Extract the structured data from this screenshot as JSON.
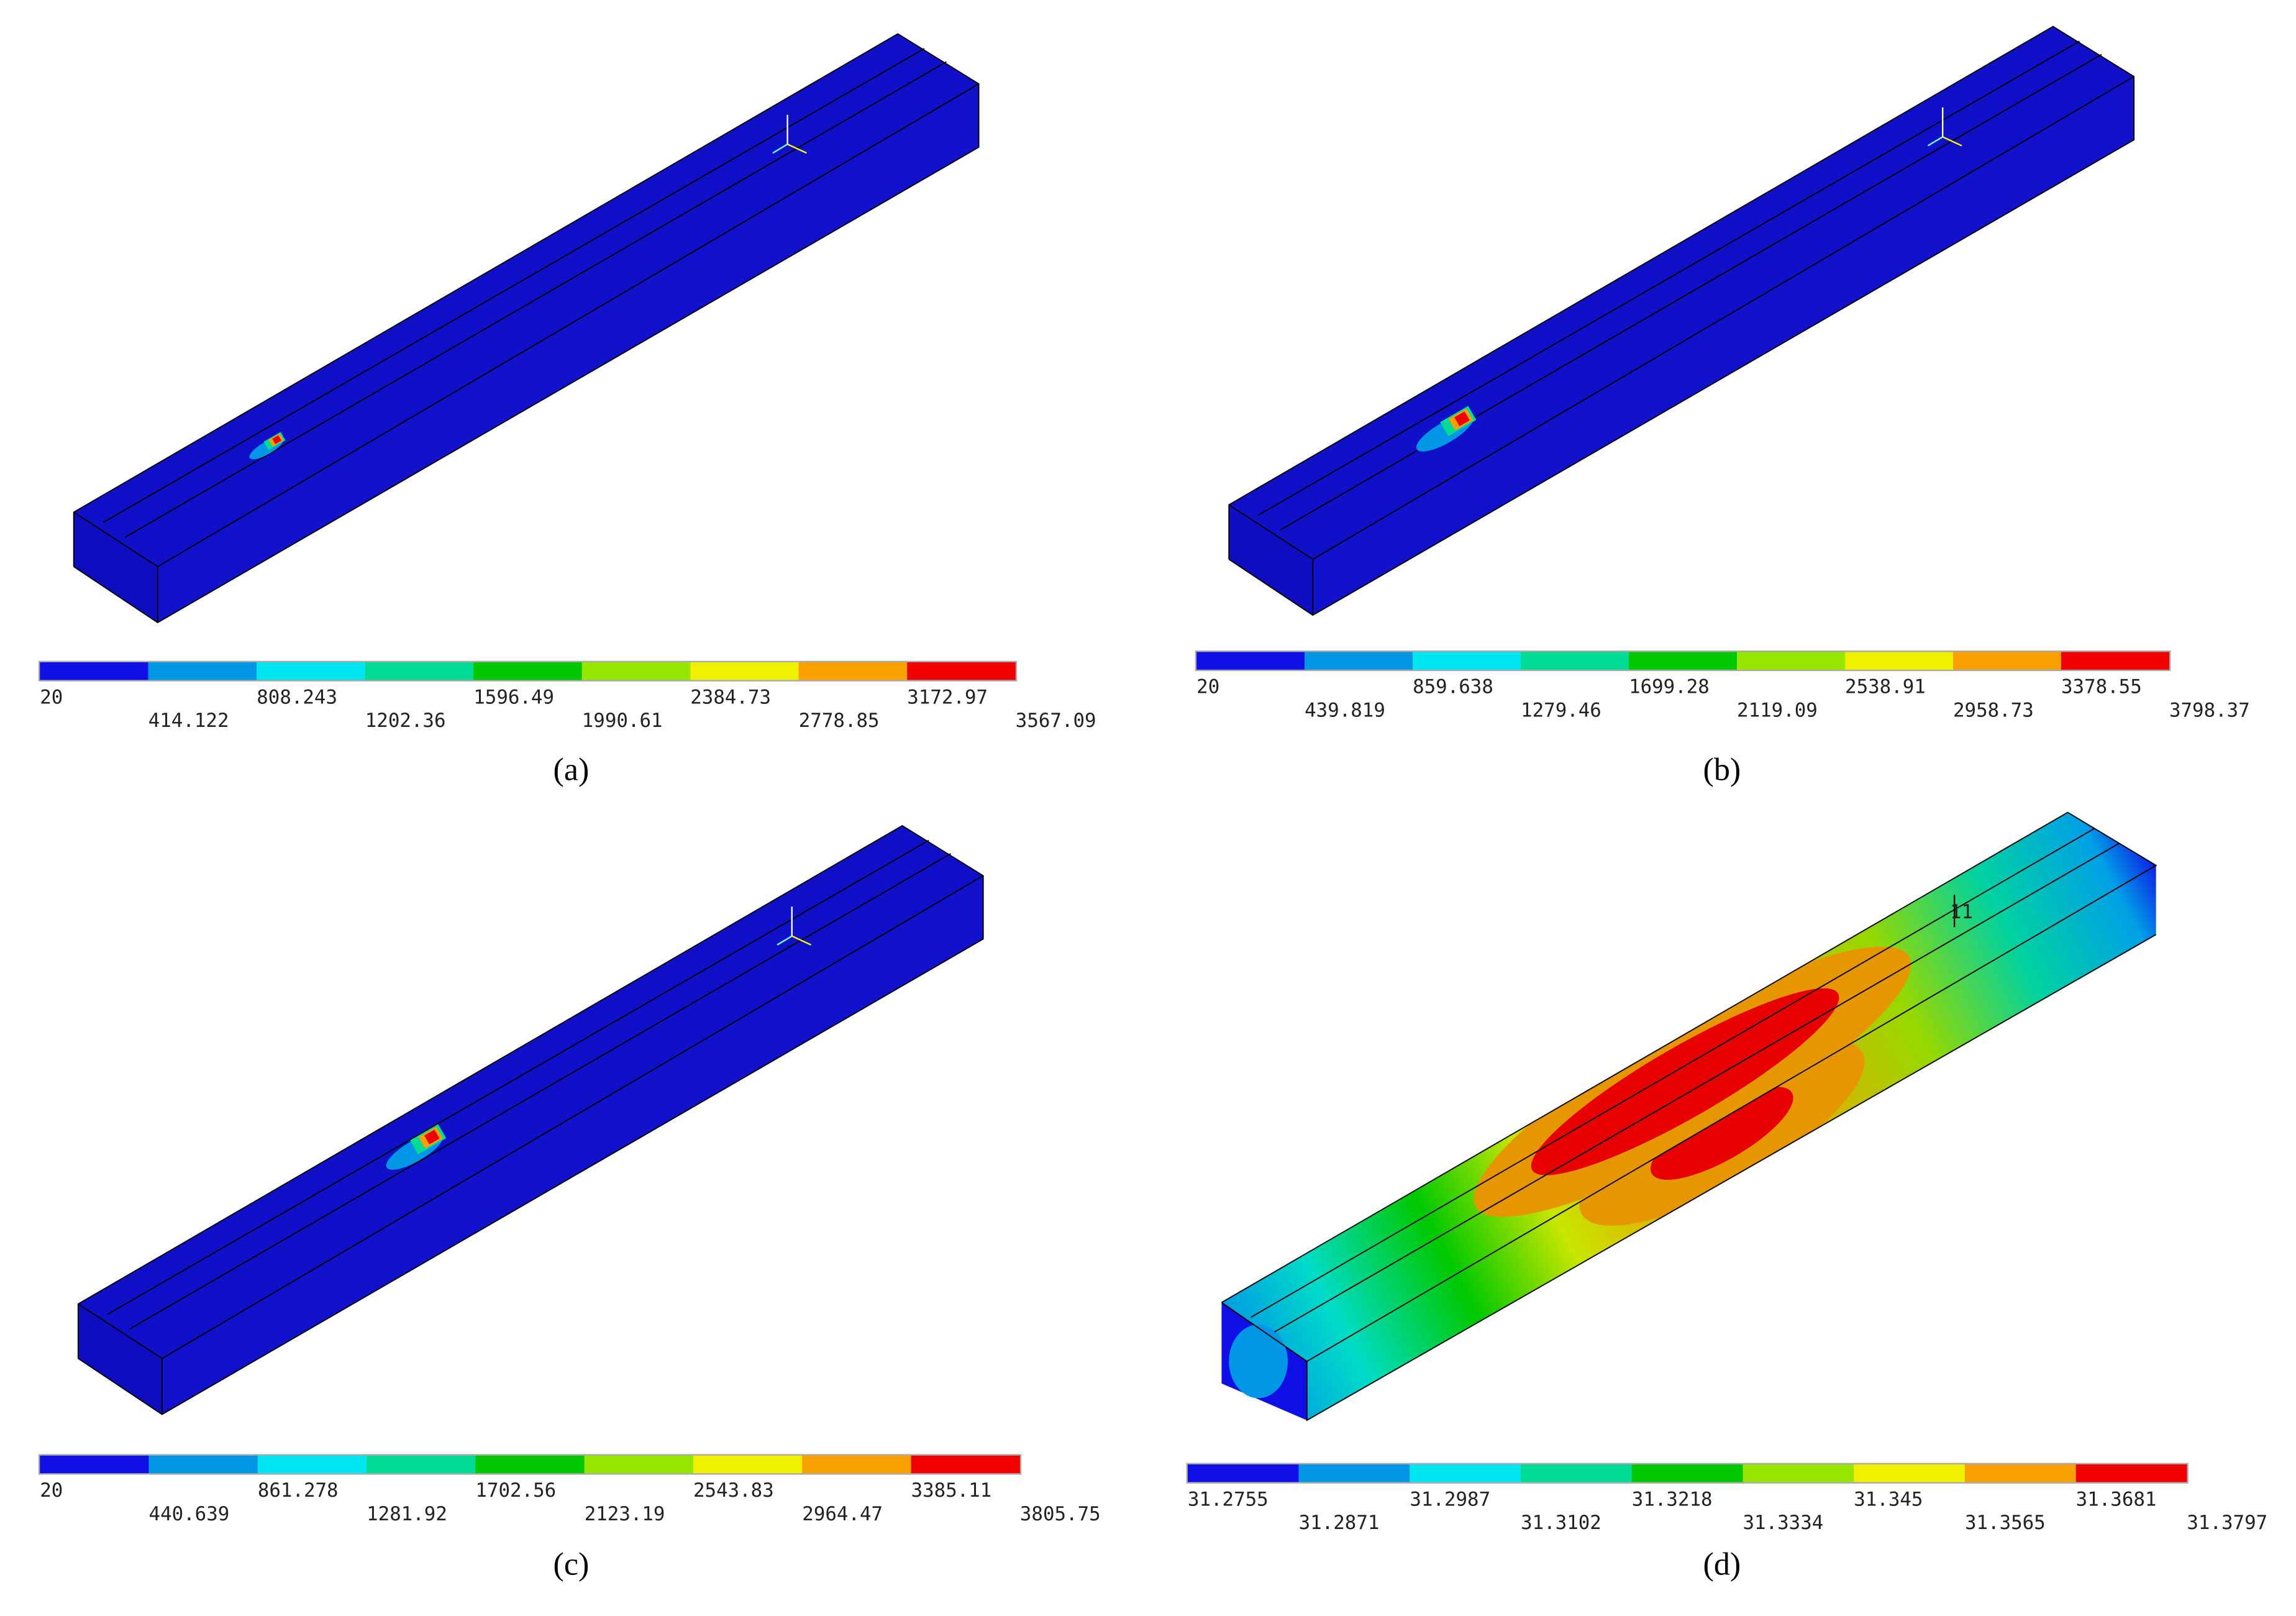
{
  "colors": [
    "#1010e6",
    "#0096e6",
    "#00e6f0",
    "#00dc96",
    "#00c800",
    "#96e600",
    "#f0f000",
    "#faa000",
    "#f00000"
  ],
  "panels": [
    {
      "caption": "(a)",
      "legend_labels": [
        "20",
        "414.122",
        "808.243",
        "1202.36",
        "1596.49",
        "1990.61",
        "2384.73",
        "2778.85",
        "3172.97",
        "3567.09"
      ]
    },
    {
      "caption": "(b)",
      "legend_labels": [
        "20",
        "439.819",
        "859.638",
        "1279.46",
        "1699.28",
        "2119.09",
        "2538.91",
        "2958.73",
        "3378.55",
        "3798.37"
      ]
    },
    {
      "caption": "(c)",
      "legend_labels": [
        "20",
        "440.639",
        "861.278",
        "1281.92",
        "1702.56",
        "2123.19",
        "2543.83",
        "2964.47",
        "3385.11",
        "3805.75"
      ]
    },
    {
      "caption": "(d)",
      "triad_label": "11",
      "legend_labels": [
        "31.2755",
        "31.2871",
        "31.2987",
        "31.3102",
        "31.3218",
        "31.3334",
        "31.345",
        "31.3565",
        "31.3681",
        "31.3797"
      ]
    }
  ]
}
